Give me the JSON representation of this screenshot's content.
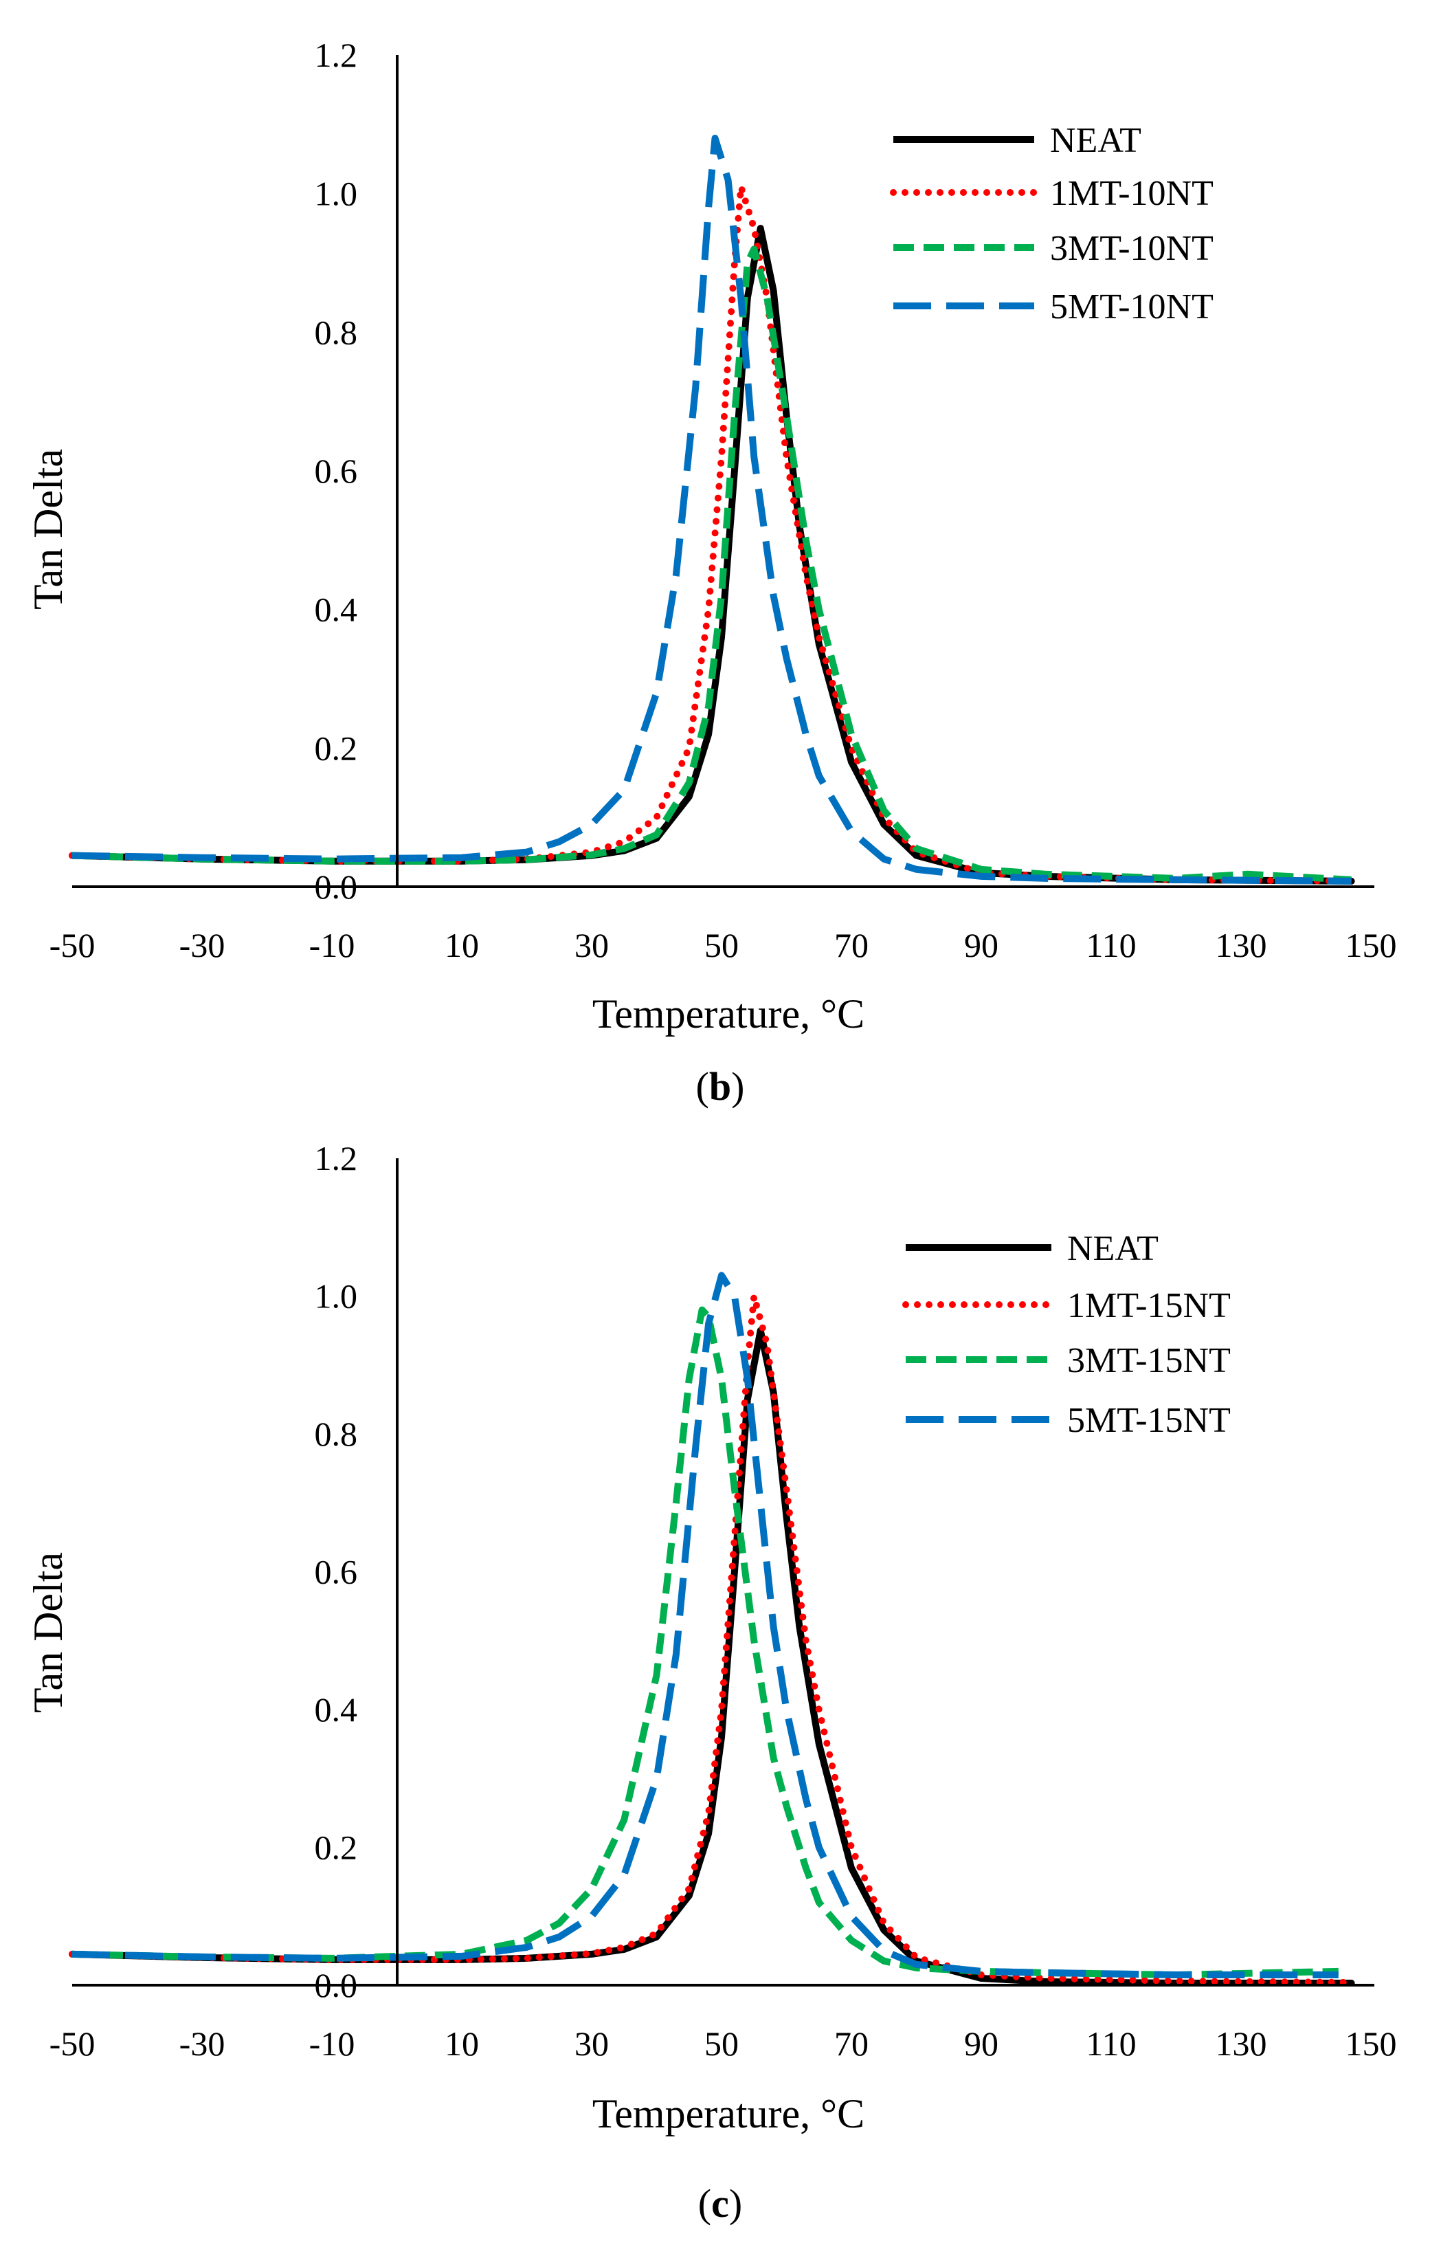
{
  "colors": {
    "neat": "#000000",
    "s1": "#ff0000",
    "s3": "#00b050",
    "s5": "#0070c0",
    "axis": "#000000"
  },
  "chart_data": [
    {
      "type": "line",
      "panel_label": "b",
      "xlabel": "Temperature, °C",
      "ylabel": "Tan Delta",
      "xlim": [
        -50,
        150
      ],
      "ylim": [
        0,
        1.2
      ],
      "xticks": [
        "-50",
        "-30",
        "-10",
        "10",
        "30",
        "50",
        "70",
        "90",
        "110",
        "130",
        "150"
      ],
      "yticks": [
        "0.0",
        "0.2",
        "0.4",
        "0.6",
        "0.8",
        "1.0",
        "1.2"
      ],
      "y_axis_crosses_at_x": 0,
      "grid": false,
      "legend_position": "top-right",
      "series": [
        {
          "name": "NEAT",
          "color_key": "neat",
          "style": "solid",
          "x": [
            -50,
            -30,
            -10,
            10,
            20,
            30,
            35,
            40,
            45,
            48,
            50,
            52,
            54,
            56,
            58,
            60,
            62,
            65,
            70,
            75,
            80,
            90,
            100,
            120,
            147
          ],
          "y": [
            0.045,
            0.04,
            0.037,
            0.037,
            0.039,
            0.045,
            0.052,
            0.07,
            0.13,
            0.22,
            0.36,
            0.6,
            0.85,
            0.95,
            0.86,
            0.68,
            0.52,
            0.35,
            0.18,
            0.09,
            0.045,
            0.02,
            0.015,
            0.01,
            0.008
          ]
        },
        {
          "name": "1MT-10NT",
          "color_key": "s1",
          "style": "dotted",
          "x": [
            -50,
            -30,
            -10,
            10,
            20,
            30,
            35,
            40,
            45,
            48,
            50,
            52,
            53,
            55,
            57,
            60,
            63,
            65,
            70,
            75,
            80,
            90,
            100,
            120,
            147
          ],
          "y": [
            0.045,
            0.04,
            0.037,
            0.037,
            0.04,
            0.05,
            0.065,
            0.1,
            0.2,
            0.4,
            0.62,
            0.9,
            1.01,
            0.95,
            0.85,
            0.62,
            0.45,
            0.36,
            0.2,
            0.1,
            0.05,
            0.02,
            0.015,
            0.01,
            0.008
          ]
        },
        {
          "name": "3MT-10NT",
          "color_key": "s3",
          "style": "dashed",
          "x": [
            -50,
            -30,
            -10,
            10,
            20,
            30,
            35,
            40,
            45,
            48,
            50,
            52,
            54,
            55,
            57,
            60,
            63,
            65,
            70,
            75,
            80,
            90,
            100,
            120,
            131,
            147
          ],
          "y": [
            0.045,
            0.04,
            0.037,
            0.037,
            0.039,
            0.046,
            0.055,
            0.075,
            0.15,
            0.26,
            0.42,
            0.68,
            0.9,
            0.92,
            0.85,
            0.68,
            0.5,
            0.4,
            0.22,
            0.11,
            0.055,
            0.025,
            0.018,
            0.012,
            0.018,
            0.01
          ]
        },
        {
          "name": "5MT-10NT",
          "color_key": "s5",
          "style": "longdash",
          "x": [
            -50,
            -30,
            -10,
            10,
            20,
            25,
            30,
            35,
            40,
            43,
            46,
            48,
            49,
            51,
            53,
            55,
            58,
            60,
            63,
            65,
            70,
            75,
            80,
            90,
            100,
            120,
            147
          ],
          "y": [
            0.045,
            0.042,
            0.04,
            0.042,
            0.05,
            0.065,
            0.09,
            0.14,
            0.28,
            0.45,
            0.72,
            0.98,
            1.08,
            1.02,
            0.85,
            0.62,
            0.42,
            0.33,
            0.22,
            0.16,
            0.08,
            0.04,
            0.025,
            0.015,
            0.012,
            0.01,
            0.008
          ]
        }
      ]
    },
    {
      "type": "line",
      "panel_label": "c",
      "xlabel": "Temperature, °C",
      "ylabel": "Tan Delta",
      "xlim": [
        -50,
        150
      ],
      "ylim": [
        0,
        1.2
      ],
      "xticks": [
        "-50",
        "-30",
        "-10",
        "10",
        "30",
        "50",
        "70",
        "90",
        "110",
        "130",
        "150"
      ],
      "yticks": [
        "0.0",
        "0.2",
        "0.4",
        "0.6",
        "0.8",
        "1.0",
        "1.2"
      ],
      "y_axis_crosses_at_x": 0,
      "grid": false,
      "legend_position": "top-right",
      "series": [
        {
          "name": "NEAT",
          "color_key": "neat",
          "style": "solid",
          "x": [
            -50,
            -30,
            -10,
            10,
            20,
            30,
            35,
            40,
            45,
            48,
            50,
            52,
            54,
            56,
            58,
            60,
            62,
            65,
            70,
            75,
            80,
            90,
            100,
            120,
            147
          ],
          "y": [
            0.045,
            0.04,
            0.037,
            0.037,
            0.039,
            0.045,
            0.052,
            0.07,
            0.13,
            0.22,
            0.36,
            0.6,
            0.85,
            0.95,
            0.86,
            0.68,
            0.52,
            0.35,
            0.17,
            0.08,
            0.035,
            0.01,
            0.005,
            0.003,
            0.003
          ]
        },
        {
          "name": "1MT-15NT",
          "color_key": "s1",
          "style": "dotted",
          "x": [
            -50,
            -30,
            -10,
            10,
            20,
            30,
            35,
            40,
            45,
            48,
            50,
            52,
            54,
            55,
            57,
            60,
            63,
            65,
            70,
            75,
            80,
            90,
            100,
            120,
            147
          ],
          "y": [
            0.045,
            0.04,
            0.037,
            0.037,
            0.039,
            0.046,
            0.055,
            0.075,
            0.14,
            0.25,
            0.4,
            0.65,
            0.9,
            1.0,
            0.93,
            0.72,
            0.5,
            0.4,
            0.2,
            0.09,
            0.04,
            0.015,
            0.01,
            0.006,
            0.004
          ]
        },
        {
          "name": "3MT-15NT",
          "color_key": "s3",
          "style": "dashed",
          "x": [
            -50,
            -30,
            -10,
            10,
            20,
            25,
            30,
            35,
            40,
            43,
            45,
            47,
            48,
            50,
            52,
            55,
            58,
            60,
            63,
            65,
            70,
            75,
            80,
            90,
            100,
            120,
            145
          ],
          "y": [
            0.045,
            0.041,
            0.039,
            0.045,
            0.065,
            0.09,
            0.14,
            0.24,
            0.45,
            0.7,
            0.88,
            0.98,
            0.97,
            0.88,
            0.72,
            0.5,
            0.33,
            0.26,
            0.17,
            0.12,
            0.065,
            0.035,
            0.025,
            0.02,
            0.018,
            0.015,
            0.02
          ]
        },
        {
          "name": "5MT-15NT",
          "color_key": "s5",
          "style": "longdash",
          "x": [
            -50,
            -30,
            -10,
            10,
            20,
            25,
            30,
            35,
            40,
            43,
            46,
            48,
            50,
            52,
            54,
            56,
            58,
            60,
            63,
            65,
            70,
            75,
            80,
            90,
            100,
            120,
            145
          ],
          "y": [
            0.045,
            0.041,
            0.039,
            0.042,
            0.055,
            0.07,
            0.1,
            0.16,
            0.3,
            0.48,
            0.78,
            0.96,
            1.03,
            1.0,
            0.88,
            0.7,
            0.52,
            0.4,
            0.27,
            0.2,
            0.1,
            0.05,
            0.03,
            0.02,
            0.018,
            0.015,
            0.015
          ]
        }
      ]
    }
  ]
}
